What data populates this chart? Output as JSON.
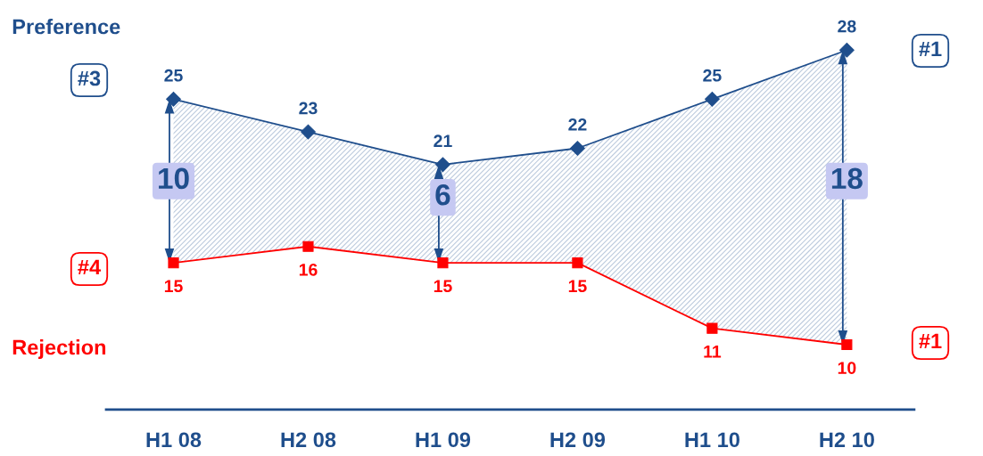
{
  "chart_data": {
    "type": "line",
    "categories": [
      "H1 08",
      "H2 08",
      "H1 09",
      "H2 09",
      "H1 10",
      "H2 10"
    ],
    "series": [
      {
        "name": "Preference",
        "color": "#1f4e8c",
        "marker": "diamond",
        "values": [
          25,
          23,
          21,
          22,
          25,
          28
        ],
        "lower": [
          15,
          16,
          15,
          15,
          11,
          10
        ],
        "upper": [
          25,
          23,
          21,
          22,
          25,
          28
        ]
      },
      {
        "name": "Rejection",
        "color": "#ff0000",
        "marker": "square",
        "values": [
          15,
          16,
          15,
          15,
          11,
          10
        ]
      }
    ],
    "annotations": [
      "#3",
      "#1",
      "#4",
      "#1",
      {
        "text": "10",
        "x": "H1 08",
        "y": 20
      },
      {
        "text": "6",
        "x": "H1 09",
        "y": 19
      },
      {
        "text": "18",
        "x": "H2 10",
        "y": 20
      }
    ],
    "data_labels": true,
    "legend": false,
    "grid": false,
    "tick_labels": "x",
    "line_style": "solid"
  }
}
